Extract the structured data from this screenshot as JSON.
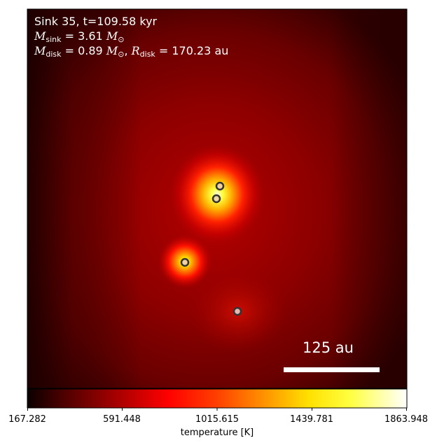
{
  "annotations": {
    "line1": "Sink 35, t=109.58 kyr",
    "sink_mass_symbol": "M",
    "sink_mass_sub": "sink",
    "sink_mass_value": " = 3.61 ",
    "disk_mass_sub": "disk",
    "disk_mass_value": " = 0.89 ",
    "solar_mass_symbol": "M",
    "solar_sub": "⊙",
    "disk_radius_symbol": "R",
    "disk_radius_value": " = 170.23 au"
  },
  "scalebar": {
    "label": "125 au"
  },
  "colorbar": {
    "colormap": "hot",
    "min": 167.282,
    "max": 1863.948,
    "ticks": [
      "167.282",
      "591.448",
      "1015.615",
      "1439.781",
      "1863.948"
    ],
    "label": "temperature [K]"
  },
  "colors": {
    "background_dark": "#4a0000",
    "background_mid": "#8a0000",
    "hot_core": "#ffff60",
    "marker_edge": "#333333"
  },
  "sinks": [
    {
      "name": "sink-a",
      "fill": "#f2d29a"
    },
    {
      "name": "sink-b",
      "fill": "#f0d8a6"
    },
    {
      "name": "sink-c",
      "fill": "#f2d0a0"
    },
    {
      "name": "sink-d",
      "fill": "#e8b8b0"
    }
  ]
}
